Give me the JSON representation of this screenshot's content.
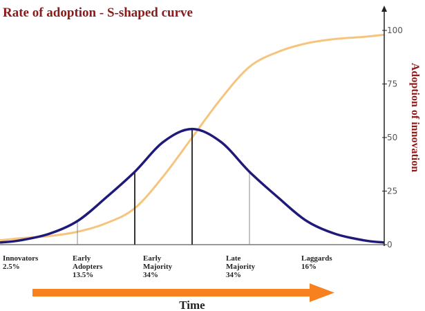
{
  "chart_data": {
    "type": "line",
    "title": "Rate of adoption - S-shaped curve",
    "ylabel": "Adoption of innovation",
    "xlabel": "Time",
    "ylim": [
      0,
      100
    ],
    "yticks": [
      0,
      25,
      50,
      75,
      100
    ],
    "xlim": [
      -3.35,
      3.35
    ],
    "grid": false,
    "colors": {
      "s_curve": "#f5c47d",
      "bell_curve": "#1f1a7a",
      "title": "#8b1a1a",
      "arrow": "#f7801f"
    },
    "series": [
      {
        "role": "s_curve",
        "x": [
          -3.35,
          -3,
          -2.5,
          -2,
          -1.5,
          -1,
          -0.5,
          0,
          0.5,
          1,
          1.5,
          2,
          2.5,
          3,
          3.35
        ],
        "values": [
          2,
          3,
          4,
          6,
          10,
          17,
          32,
          50,
          68,
          83,
          90,
          94,
          96,
          97,
          98
        ]
      },
      {
        "role": "bell_curve",
        "x": [
          -3.35,
          -3,
          -2.5,
          -2,
          -1.5,
          -1,
          -0.5,
          0,
          0.5,
          1,
          1.5,
          2,
          2.5,
          3,
          3.35
        ],
        "values": [
          1,
          2,
          5,
          11,
          22,
          34,
          48,
          54,
          48,
          34,
          22,
          11,
          5,
          2,
          1
        ]
      }
    ],
    "dividers": [
      -2,
      -1,
      0,
      1
    ],
    "segments": [
      {
        "lines": [
          "Innovators",
          "2.5%"
        ]
      },
      {
        "lines": [
          "Early",
          "Adopters",
          "13.5%"
        ]
      },
      {
        "lines": [
          "Early",
          "Majority",
          "34%"
        ]
      },
      {
        "lines": [
          "Late",
          "Majority",
          "34%"
        ]
      },
      {
        "lines": [
          "Laggards",
          "16%"
        ]
      }
    ]
  }
}
